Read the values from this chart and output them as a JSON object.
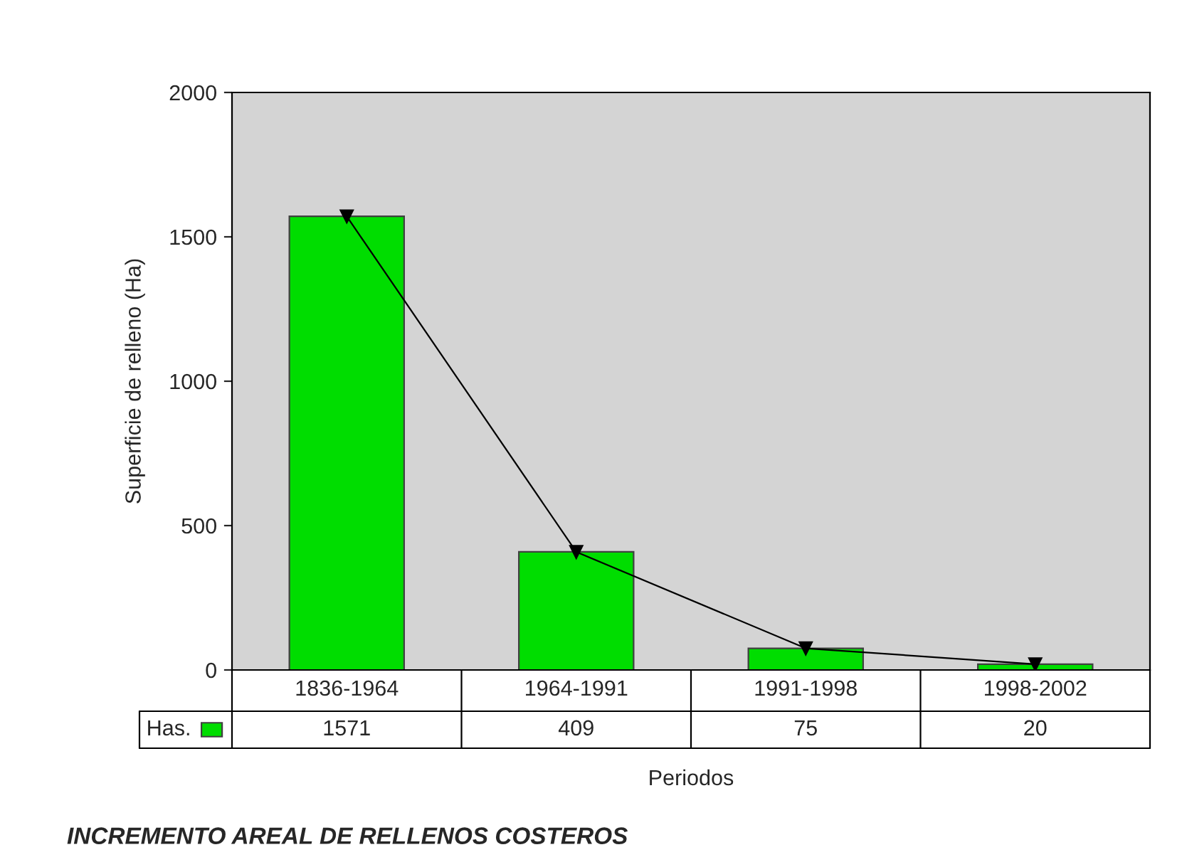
{
  "chart_data": {
    "type": "bar",
    "xlabel": "Periodos",
    "ylabel": "Superficie de relleno (Ha)",
    "annotations": [
      "INCREMENTO AREAL DE RELLENOS COSTEROS"
    ],
    "categories": [
      "1836-1964",
      "1964-1991",
      "1991-1998",
      "1998-2002"
    ],
    "series": [
      {
        "name": "Has.",
        "color": "#00dd00",
        "values": [
          1571,
          409,
          75,
          20
        ],
        "value_labels": [
          "1571",
          "409",
          "75",
          "20"
        ]
      },
      {
        "type": "line",
        "color": "#000000",
        "values": [
          1571,
          409,
          75,
          20
        ]
      }
    ],
    "ylim": [
      0,
      2000
    ],
    "yticks": [
      0,
      500,
      1000,
      1500,
      2000
    ],
    "grid": false,
    "legend": "bottom left",
    "marker": "triangle",
    "line_style": "solid"
  }
}
